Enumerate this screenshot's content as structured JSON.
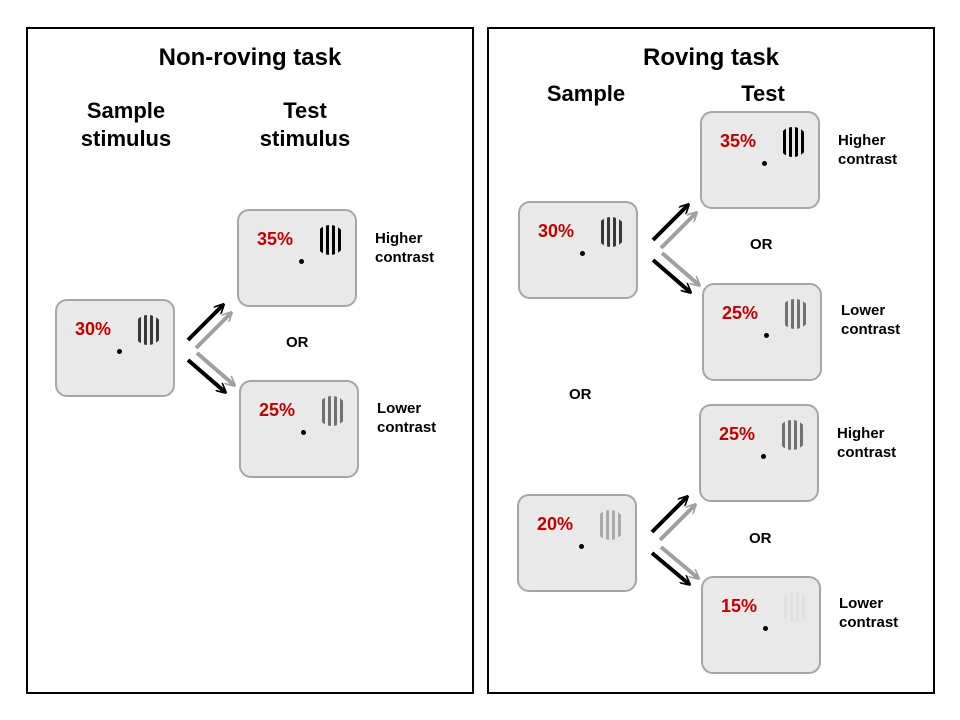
{
  "left_panel": {
    "title": "Non-roving task",
    "sample_header": "Sample\nstimulus",
    "test_header": "Test\nstimulus",
    "sample": {
      "contrast": "30%",
      "level": 0.3
    },
    "test_high": {
      "contrast": "35%",
      "level": 0.35,
      "label": "Higher\ncontrast"
    },
    "test_low": {
      "contrast": "25%",
      "level": 0.25,
      "label": "Lower\ncontrast"
    },
    "or_text": "OR"
  },
  "right_panel": {
    "title": "Roving task",
    "sample_header": "Sample",
    "test_header": "Test",
    "between_text": "OR",
    "top": {
      "sample": {
        "contrast": "30%",
        "level": 0.3
      },
      "test_high": {
        "contrast": "35%",
        "level": 0.35,
        "label": "Higher\ncontrast"
      },
      "test_low": {
        "contrast": "25%",
        "level": 0.25,
        "label": "Lower\ncontrast"
      },
      "or_text": "OR"
    },
    "bottom": {
      "sample": {
        "contrast": "20%",
        "level": 0.2
      },
      "test_high": {
        "contrast": "25%",
        "level": 0.25,
        "label": "Higher\ncontrast"
      },
      "test_low": {
        "contrast": "15%",
        "level": 0.15,
        "label": "Lower\ncontrast"
      },
      "or_text": "OR"
    }
  },
  "colors": {
    "contrast_text": "#c00000",
    "box_fill": "#e9e9e9",
    "box_border": "#a6a6a6"
  }
}
